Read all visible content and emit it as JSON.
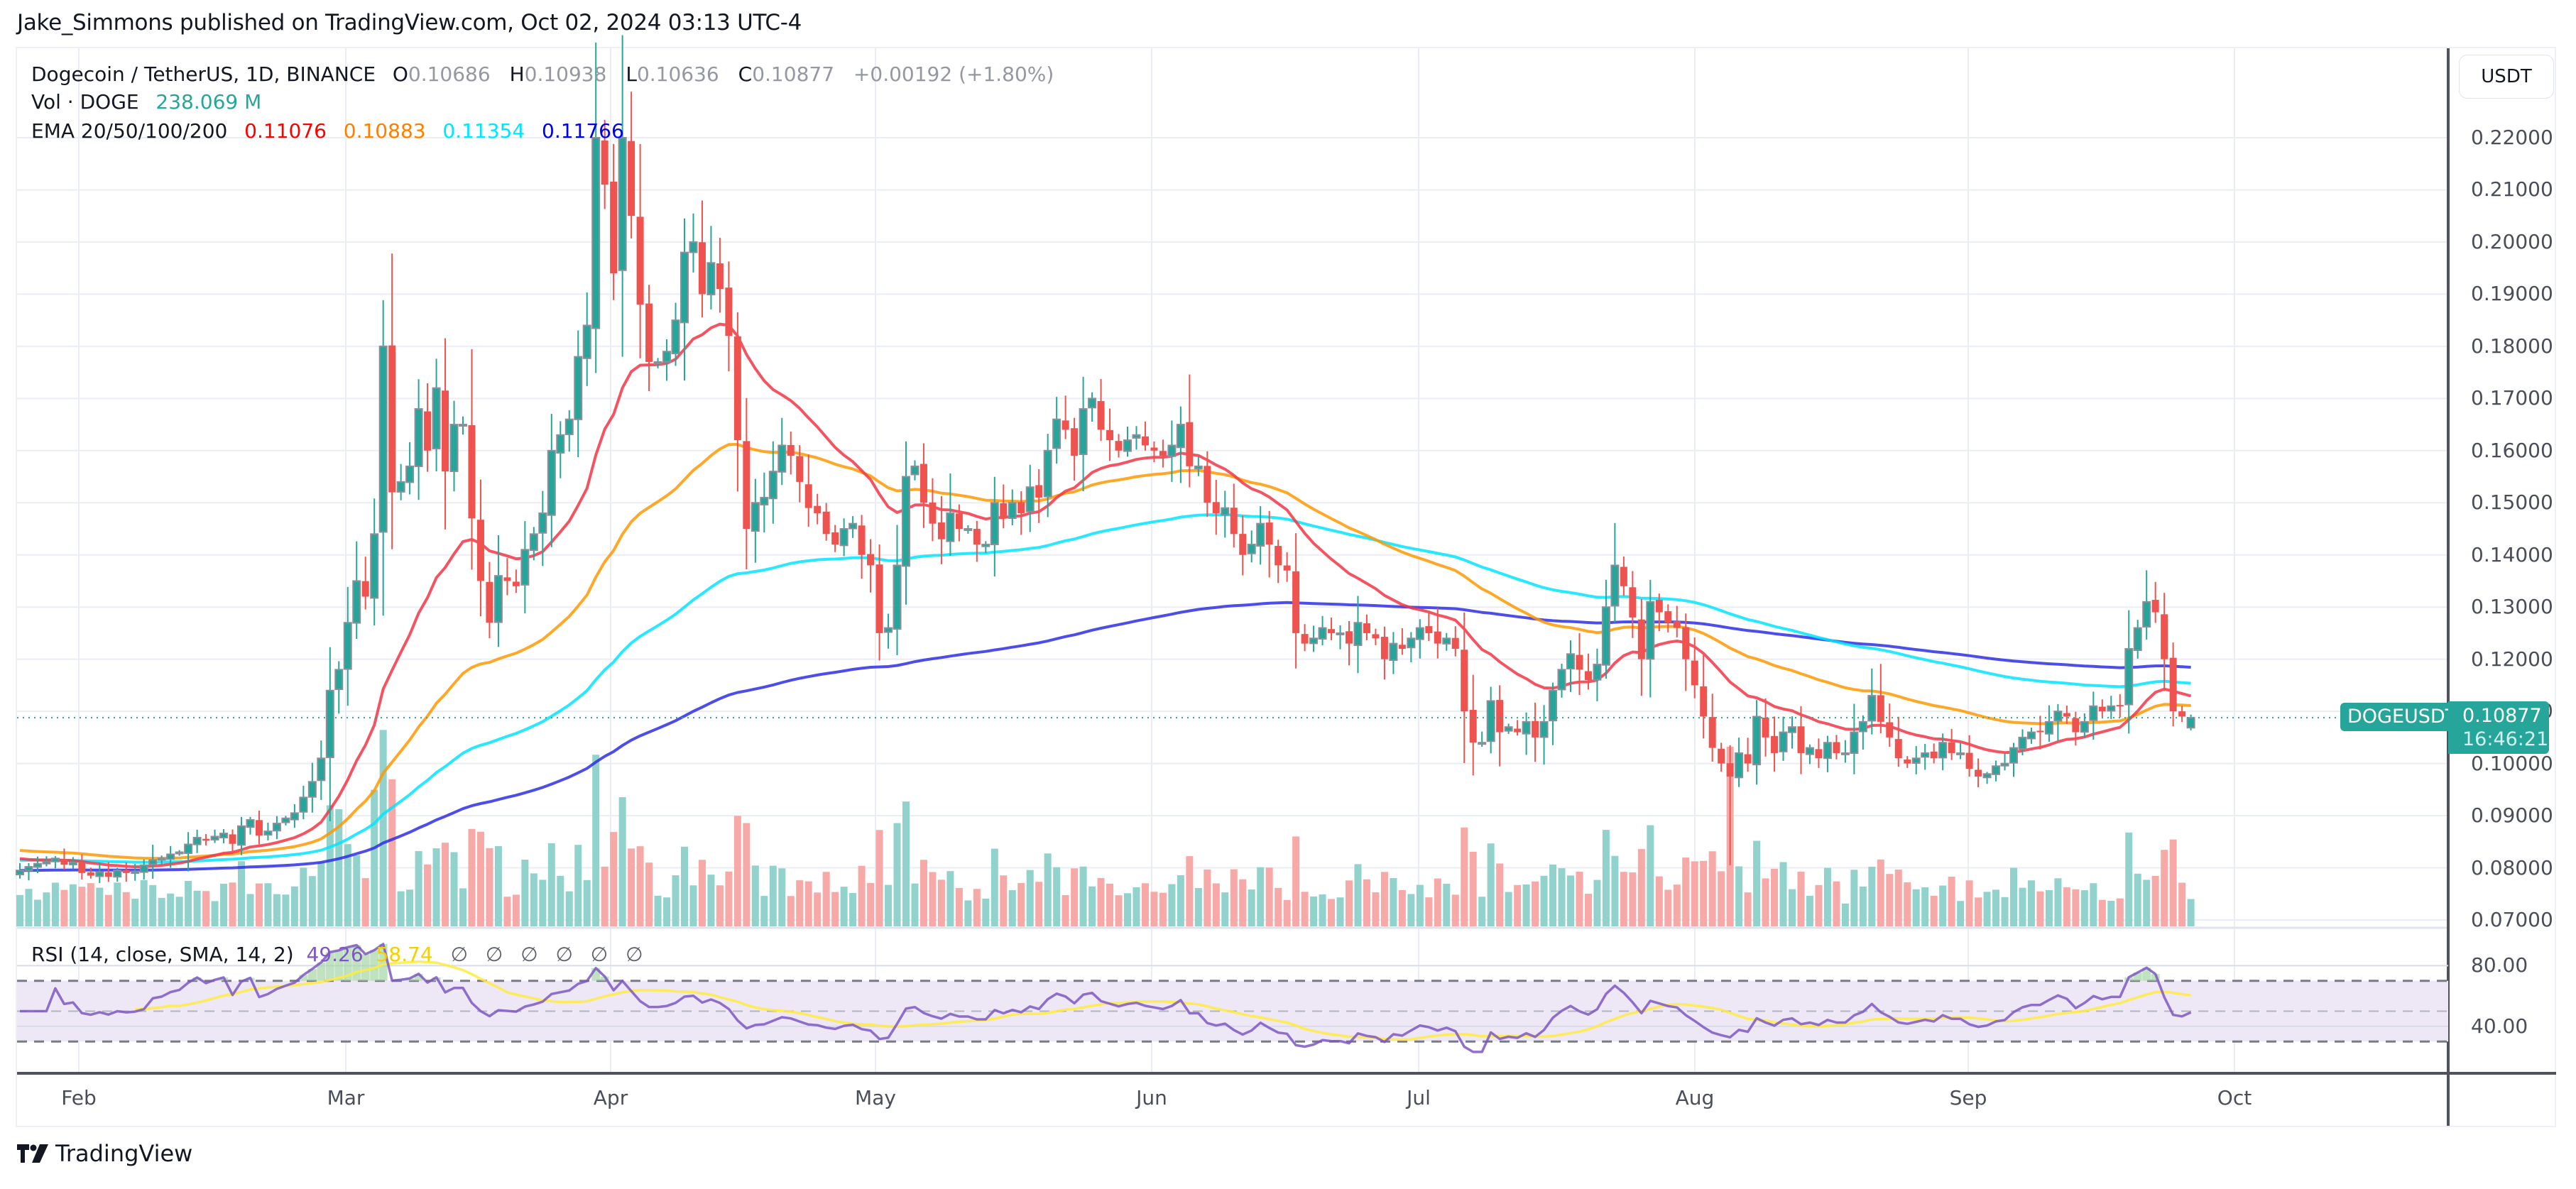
{
  "publisher": "Jake_Simmons published on TradingView.com, Oct 02, 2024 03:13 UTC-4",
  "legend": {
    "symbol": "Dogecoin / TetherUS, 1D, BINANCE",
    "open_label": "O",
    "open": "0.10686",
    "high_label": "H",
    "high": "0.10938",
    "low_label": "L",
    "low": "0.10636",
    "close_label": "C",
    "close": "0.10877",
    "change": "+0.00192 (+1.80%)",
    "volume_label": "Vol · DOGE",
    "volume": "238.069 M",
    "ema_label": "EMA 20/50/100/200",
    "ema20": "0.11076",
    "ema50": "0.10883",
    "ema100": "0.11354",
    "ema200": "0.11766"
  },
  "rsi_legend": {
    "label": "RSI (14, close, SMA, 14, 2)",
    "rsi": "49.26",
    "sma": "58.74",
    "na_values": [
      "∅",
      "∅",
      "∅",
      "∅",
      "∅",
      "∅"
    ]
  },
  "price_axis": {
    "currency": "USDT",
    "ticks": [
      "0.22000",
      "0.21000",
      "0.20000",
      "0.19000",
      "0.18000",
      "0.17000",
      "0.16000",
      "0.15000",
      "0.14000",
      "0.13000",
      "0.12000",
      "0.11000",
      "0.10000",
      "0.09000",
      "0.08000",
      "0.07000"
    ]
  },
  "rsi_axis": {
    "ticks": [
      "80.00",
      "40.00"
    ]
  },
  "last_price": {
    "symbol": "DOGEUSDT",
    "price": "0.10877",
    "countdown": "16:46:21"
  },
  "time_axis": {
    "labels": [
      "Feb",
      "Mar",
      "Apr",
      "May",
      "Jun",
      "Jul",
      "Aug",
      "Sep",
      "Oct"
    ]
  },
  "brand": "TradingView",
  "colors": {
    "up": "#26a69a",
    "down": "#ef5350",
    "up_border": "#8a8f99",
    "vol_up": "#92d2cc",
    "vol_down": "#f7a9a7",
    "ema20": "#f23645",
    "ema50": "#ff9800",
    "ema100": "#00e5ff",
    "ema200": "#2e2ee6",
    "rsi": "#7e57c2",
    "rsi_sma": "#ffeb3b",
    "rsi_band": "#ede7f6"
  },
  "chart_data": {
    "type": "candlestick",
    "title": "Dogecoin / TetherUS, 1D, BINANCE",
    "xlabel": "",
    "ylabel": "USDT",
    "ylim": [
      0.0685,
      0.2297
    ],
    "x_range": [
      "2024-01-25",
      "2024-10-02"
    ],
    "month_ticks": [
      "Feb",
      "Mar",
      "Apr",
      "May",
      "Jun",
      "Jul",
      "Aug",
      "Sep",
      "Oct"
    ],
    "indicators": [
      "Volume",
      "EMA 20",
      "EMA 50",
      "EMA 100",
      "EMA 200",
      "RSI 14 + SMA 14"
    ],
    "last": {
      "open": 0.10686,
      "high": 0.10938,
      "low": 0.10636,
      "close": 0.10877,
      "change": 0.00192,
      "change_pct": 1.8,
      "volume_m": 238.069
    },
    "ema_last": {
      "ema20": 0.11076,
      "ema50": 0.10883,
      "ema100": 0.11354,
      "ema200": 0.11766
    },
    "rsi_last": {
      "rsi": 49.26,
      "sma": 58.74
    },
    "closes": [
      0.0795,
      0.0802,
      0.0808,
      0.0812,
      0.0818,
      0.0806,
      0.081,
      0.079,
      0.0785,
      0.0792,
      0.0783,
      0.0795,
      0.079,
      0.0793,
      0.0805,
      0.0815,
      0.0818,
      0.0826,
      0.083,
      0.0845,
      0.0858,
      0.0852,
      0.086,
      0.0866,
      0.0846,
      0.088,
      0.0892,
      0.0862,
      0.087,
      0.0885,
      0.0895,
      0.0905,
      0.0935,
      0.0965,
      0.101,
      0.114,
      0.118,
      0.127,
      0.135,
      0.132,
      0.144,
      0.18,
      0.152,
      0.154,
      0.157,
      0.168,
      0.16,
      0.172,
      0.156,
      0.165,
      0.165,
      0.147,
      0.135,
      0.127,
      0.136,
      0.135,
      0.134,
      0.141,
      0.144,
      0.148,
      0.16,
      0.163,
      0.166,
      0.178,
      0.184,
      0.22,
      0.211,
      0.194,
      0.22,
      0.205,
      0.188,
      0.177,
      0.177,
      0.179,
      0.185,
      0.198,
      0.2,
      0.19,
      0.196,
      0.191,
      0.182,
      0.162,
      0.145,
      0.15,
      0.151,
      0.156,
      0.161,
      0.159,
      0.154,
      0.149,
      0.148,
      0.144,
      0.142,
      0.145,
      0.146,
      0.14,
      0.138,
      0.125,
      0.126,
      0.138,
      0.155,
      0.157,
      0.15,
      0.146,
      0.143,
      0.148,
      0.145,
      0.145,
      0.142,
      0.142,
      0.15,
      0.147,
      0.15,
      0.148,
      0.153,
      0.151,
      0.16,
      0.166,
      0.164,
      0.159,
      0.168,
      0.17,
      0.164,
      0.162,
      0.16,
      0.162,
      0.163,
      0.161,
      0.16,
      0.159,
      0.161,
      0.165,
      0.157,
      0.157,
      0.15,
      0.148,
      0.149,
      0.144,
      0.14,
      0.142,
      0.146,
      0.142,
      0.138,
      0.137,
      0.125,
      0.123,
      0.124,
      0.126,
      0.125,
      0.125,
      0.123,
      0.127,
      0.125,
      0.124,
      0.12,
      0.123,
      0.122,
      0.124,
      0.126,
      0.125,
      0.123,
      0.124,
      0.122,
      0.11,
      0.104,
      0.104,
      0.112,
      0.106,
      0.107,
      0.106,
      0.108,
      0.105,
      0.108,
      0.114,
      0.118,
      0.121,
      0.118,
      0.116,
      0.119,
      0.13,
      0.138,
      0.134,
      0.128,
      0.12,
      0.131,
      0.129,
      0.127,
      0.126,
      0.12,
      0.115,
      0.109,
      0.103,
      0.1,
      0.0975,
      0.102,
      0.1,
      0.109,
      0.105,
      0.102,
      0.106,
      0.107,
      0.102,
      0.103,
      0.101,
      0.104,
      0.102,
      0.102,
      0.106,
      0.108,
      0.113,
      0.108,
      0.105,
      0.101,
      0.1,
      0.101,
      0.102,
      0.101,
      0.104,
      0.102,
      0.102,
      0.099,
      0.0975,
      0.098,
      0.0995,
      0.1,
      0.103,
      0.105,
      0.106,
      0.106,
      0.108,
      0.11,
      0.109,
      0.106,
      0.108,
      0.111,
      0.11,
      0.111,
      0.111,
      0.122,
      0.126,
      0.131,
      0.129,
      0.12,
      0.11,
      0.109,
      0.1088
    ],
    "price_ticks": [
      0.22,
      0.21,
      0.2,
      0.19,
      0.18,
      0.17,
      0.16,
      0.15,
      0.14,
      0.13,
      0.12,
      0.11,
      0.1,
      0.09,
      0.08,
      0.07
    ],
    "rsi_ticks": [
      80,
      40
    ],
    "rsi_bands": {
      "upper": 70,
      "middle": 50,
      "lower": 30
    }
  }
}
